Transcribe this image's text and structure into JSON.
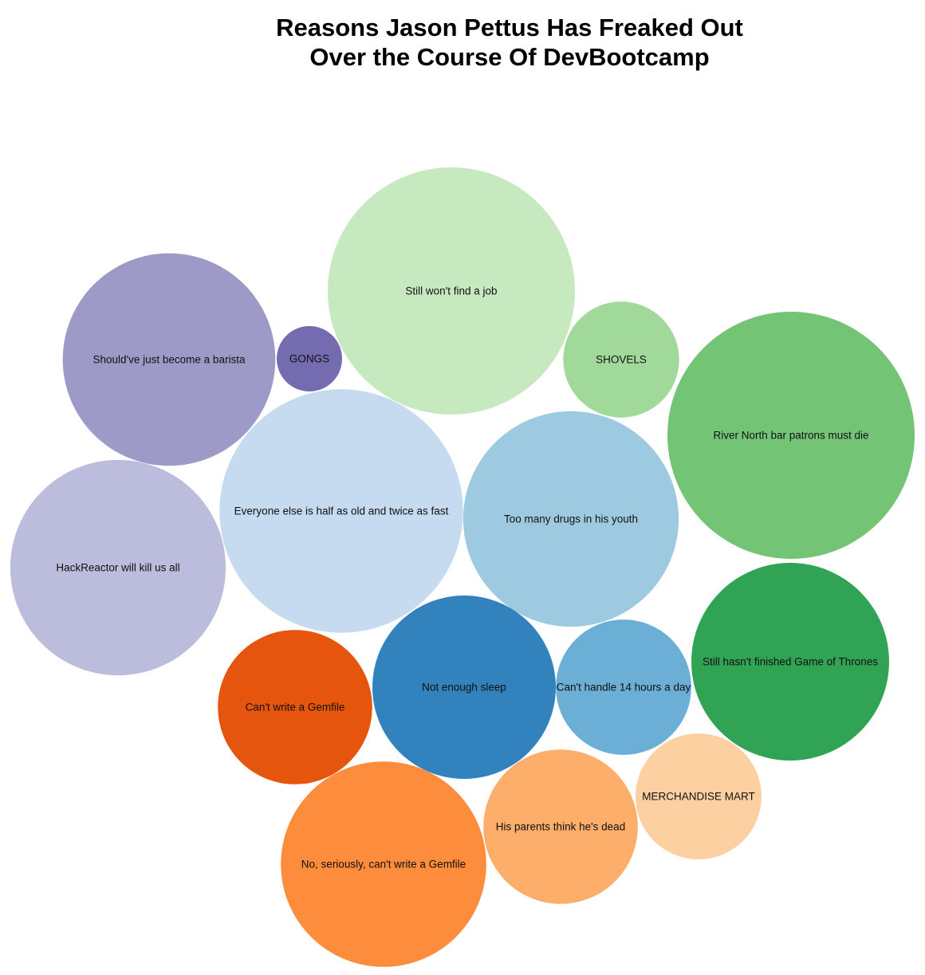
{
  "chart_data": {
    "type": "bubble",
    "title_lines": [
      "Reasons Jason Pettus Has Freaked Out",
      "Over the Course Of DevBootcamp"
    ],
    "series": [
      {
        "name": "Still won't find a job",
        "value": 100,
        "color": "#c7e9c0"
      },
      {
        "name": "River North bar patrons must die",
        "value": 100,
        "color": "#74c476"
      },
      {
        "name": "Everyone else is half as old and twice as fast",
        "value": 97,
        "color": "#c6dbef"
      },
      {
        "name": "Too many drugs in his youth",
        "value": 76,
        "color": "#9ecae1"
      },
      {
        "name": "HackReactor will kill us all",
        "value": 76,
        "color": "#bcbddc"
      },
      {
        "name": "Should've just become a barista",
        "value": 74,
        "color": "#9e9ac8"
      },
      {
        "name": "No, seriously, can't write a Gemfile",
        "value": 69,
        "color": "#fd8d3c"
      },
      {
        "name": "Still hasn't finished Game of Thrones",
        "value": 64,
        "color": "#31a354"
      },
      {
        "name": "Not enough sleep",
        "value": 55,
        "color": "#3182bd"
      },
      {
        "name": "His parents think he's dead",
        "value": 39,
        "color": "#fdae6b"
      },
      {
        "name": "Can't write a Gemfile",
        "value": 39,
        "color": "#e6550d"
      },
      {
        "name": "Can't handle 14 hours a day",
        "value": 30,
        "color": "#6baed6"
      },
      {
        "name": "MERCHANDISE MART",
        "value": 26,
        "color": "#fdd0a2"
      },
      {
        "name": "SHOVELS",
        "value": 22,
        "color": "#a1d99b"
      },
      {
        "name": "GONGS",
        "value": 7,
        "color": "#756bb1"
      }
    ]
  }
}
